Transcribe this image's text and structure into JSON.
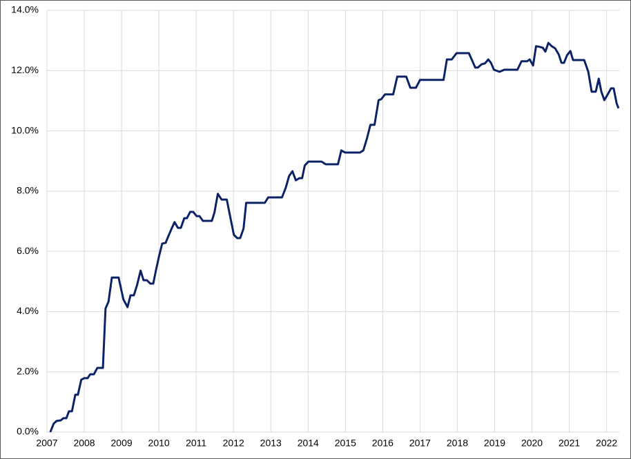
{
  "chart_data": {
    "type": "line",
    "x": [
      2007.09,
      2007.18,
      2007.26,
      2007.37,
      2007.44,
      2007.52,
      2007.59,
      2007.67,
      2007.76,
      2007.83,
      2007.92,
      2008.0,
      2008.09,
      2008.16,
      2008.26,
      2008.35,
      2008.5,
      2008.57,
      2008.65,
      2008.74,
      2008.92,
      2009.05,
      2009.16,
      2009.24,
      2009.33,
      2009.42,
      2009.51,
      2009.59,
      2009.68,
      2009.77,
      2009.85,
      2009.92,
      2010.01,
      2010.09,
      2010.18,
      2010.27,
      2010.35,
      2010.42,
      2010.51,
      2010.59,
      2010.68,
      2010.75,
      2010.84,
      2010.92,
      2011.01,
      2011.09,
      2011.18,
      2011.42,
      2011.49,
      2011.58,
      2011.68,
      2011.82,
      2011.92,
      2012.01,
      2012.1,
      2012.18,
      2012.27,
      2012.34,
      2012.84,
      2012.93,
      2013.3,
      2013.4,
      2013.49,
      2013.58,
      2013.67,
      2013.77,
      2013.84,
      2013.91,
      2014.01,
      2014.36,
      2014.47,
      2014.8,
      2014.89,
      2014.99,
      2015.39,
      2015.48,
      2015.58,
      2015.67,
      2015.78,
      2015.89,
      2015.96,
      2016.06,
      2016.28,
      2016.39,
      2016.63,
      2016.74,
      2016.89,
      2017.0,
      2017.63,
      2017.72,
      2017.85,
      2017.98,
      2018.31,
      2018.48,
      2018.55,
      2018.65,
      2018.74,
      2018.83,
      2018.9,
      2018.98,
      2019.13,
      2019.26,
      2019.61,
      2019.72,
      2019.87,
      2019.94,
      2020.03,
      2020.11,
      2020.2,
      2020.29,
      2020.36,
      2020.44,
      2020.53,
      2020.62,
      2020.72,
      2020.79,
      2020.86,
      2020.94,
      2021.03,
      2021.1,
      2021.4,
      2021.51,
      2021.6,
      2021.71,
      2021.79,
      2021.86,
      2021.94,
      2022.03,
      2022.12,
      2022.19,
      2022.27,
      2022.32
    ],
    "series": [
      {
        "color": "#0b2266",
        "values": [
          0,
          0.28,
          0.37,
          0.39,
          0.46,
          0.46,
          0.69,
          0.69,
          1.24,
          1.24,
          1.74,
          1.79,
          1.79,
          1.92,
          1.92,
          2.13,
          2.13,
          4.1,
          4.33,
          5.13,
          5.13,
          4.4,
          4.15,
          4.54,
          4.54,
          4.9,
          5.36,
          5.04,
          5.04,
          4.93,
          4.93,
          5.36,
          5.87,
          6.26,
          6.28,
          6.55,
          6.78,
          6.97,
          6.78,
          6.78,
          7.1,
          7.1,
          7.31,
          7.31,
          7.17,
          7.17,
          7.01,
          7.01,
          7.29,
          7.91,
          7.72,
          7.72,
          7.1,
          6.55,
          6.44,
          6.44,
          6.76,
          7.61,
          7.61,
          7.79,
          7.79,
          8.11,
          8.5,
          8.66,
          8.36,
          8.43,
          8.43,
          8.85,
          8.98,
          8.98,
          8.89,
          8.89,
          9.35,
          9.28,
          9.28,
          9.35,
          9.76,
          10.2,
          10.2,
          11.02,
          11.05,
          11.21,
          11.21,
          11.8,
          11.8,
          11.43,
          11.43,
          11.69,
          11.69,
          12.37,
          12.37,
          12.58,
          12.58,
          12.1,
          12.1,
          12.21,
          12.24,
          12.37,
          12.26,
          12.03,
          11.96,
          12.03,
          12.03,
          12.31,
          12.31,
          12.37,
          12.17,
          12.81,
          12.79,
          12.76,
          12.63,
          12.92,
          12.81,
          12.74,
          12.53,
          12.26,
          12.26,
          12.51,
          12.65,
          12.35,
          12.35,
          11.96,
          11.3,
          11.3,
          11.73,
          11.3,
          11.02,
          11.21,
          11.41,
          11.41,
          10.91,
          10.75
        ]
      }
    ],
    "xlim": [
      2007,
      2022.34
    ],
    "xticks": [
      2007,
      2008,
      2009,
      2010,
      2011,
      2012,
      2013,
      2014,
      2015,
      2016,
      2017,
      2018,
      2019,
      2020,
      2021,
      2022
    ],
    "ylim": [
      0,
      14
    ],
    "yticks": [
      {
        "value": 0,
        "label": "0.0%"
      },
      {
        "value": 2,
        "label": "2.0%"
      },
      {
        "value": 4,
        "label": "4.0%"
      },
      {
        "value": 6,
        "label": "6.0%"
      },
      {
        "value": 8,
        "label": "8.0%"
      },
      {
        "value": 10,
        "label": "10.0%"
      },
      {
        "value": 12,
        "label": "12.0%"
      },
      {
        "value": 14,
        "label": "14.0%"
      }
    ],
    "grid": true
  }
}
